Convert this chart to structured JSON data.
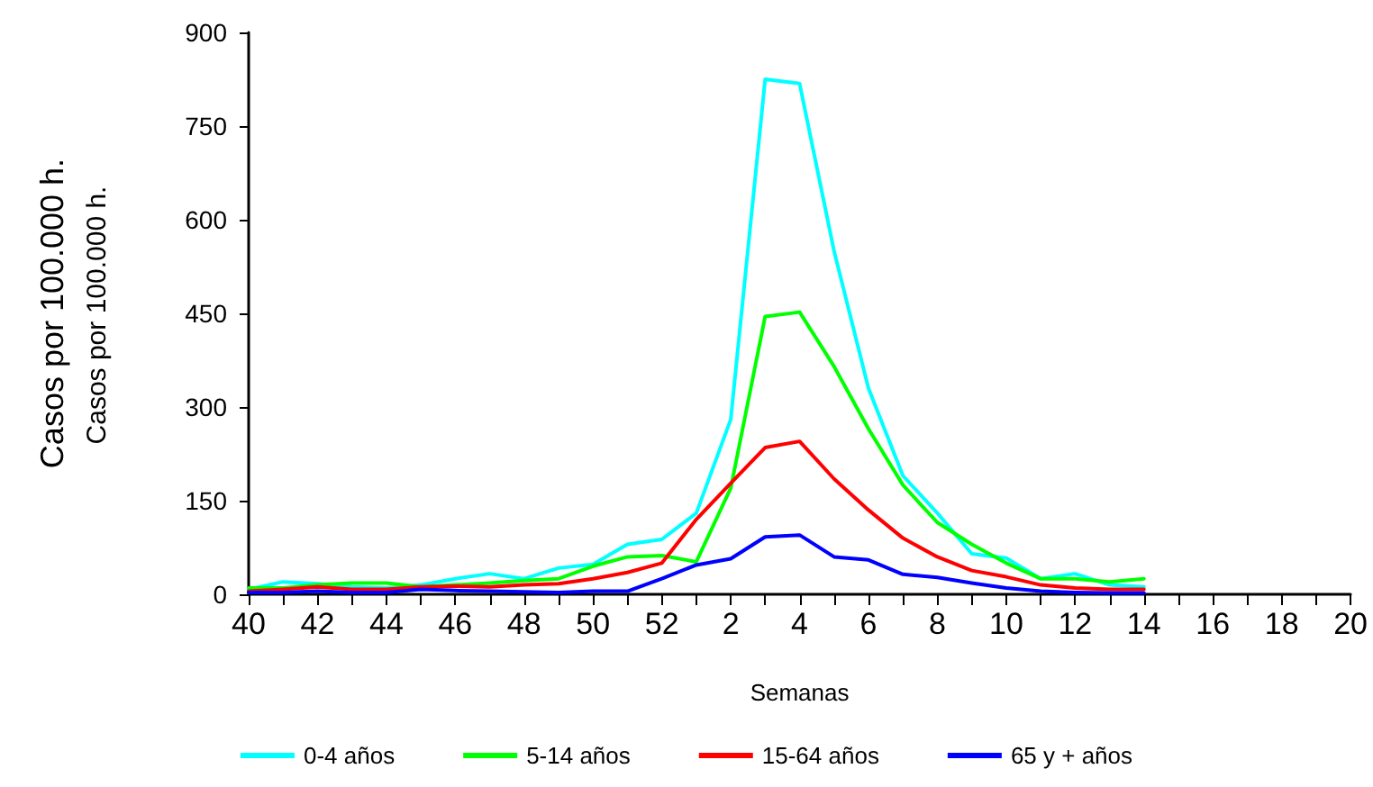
{
  "chart_data": {
    "type": "line",
    "xlabel": "Semanas",
    "ylabel": "Casos por 100.000 h.",
    "annotations": [
      "Casos por 100.000 h."
    ],
    "categories": [
      "40",
      null,
      "42",
      null,
      "44",
      null,
      "46",
      null,
      "48",
      null,
      "50",
      null,
      "52",
      null,
      "2",
      null,
      "4",
      null,
      "6",
      null,
      "8",
      null,
      "10",
      null,
      "12",
      null,
      "14",
      null,
      "16",
      null,
      "18",
      null,
      "20"
    ],
    "series": [
      {
        "name": "0-4 años",
        "color": "#00ffff",
        "values": [
          8,
          20,
          17,
          12,
          10,
          15,
          25,
          33,
          25,
          42,
          48,
          80,
          88,
          130,
          280,
          825,
          818,
          550,
          330,
          190,
          130,
          65,
          58,
          25,
          33,
          15,
          12,
          null,
          null,
          null,
          null,
          null,
          null
        ]
      },
      {
        "name": "5-14 años",
        "color": "#00ff00",
        "values": [
          10,
          10,
          15,
          18,
          18,
          12,
          15,
          18,
          22,
          25,
          45,
          60,
          62,
          52,
          170,
          445,
          452,
          365,
          265,
          175,
          115,
          80,
          50,
          25,
          25,
          20,
          25,
          null,
          null,
          null,
          null,
          null,
          null
        ]
      },
      {
        "name": "15-64 años",
        "color": "#ff0000",
        "values": [
          5,
          8,
          12,
          8,
          8,
          12,
          13,
          12,
          15,
          17,
          25,
          35,
          50,
          120,
          178,
          235,
          245,
          185,
          135,
          90,
          60,
          38,
          28,
          15,
          10,
          8,
          8,
          null,
          null,
          null,
          null,
          null,
          null
        ]
      },
      {
        "name": "65 y + años",
        "color": "#0000ff",
        "values": [
          3,
          3,
          5,
          3,
          3,
          8,
          6,
          5,
          4,
          3,
          5,
          5,
          25,
          47,
          57,
          92,
          95,
          60,
          55,
          32,
          27,
          18,
          10,
          5,
          3,
          2,
          2,
          null,
          null,
          null,
          null,
          null,
          null
        ]
      }
    ],
    "ylim": [
      0,
      900
    ],
    "yticks": [
      0,
      150,
      300,
      450,
      600,
      750,
      900
    ],
    "grid": false,
    "legend": "bottom",
    "marker": "none",
    "line_style": "solid"
  }
}
